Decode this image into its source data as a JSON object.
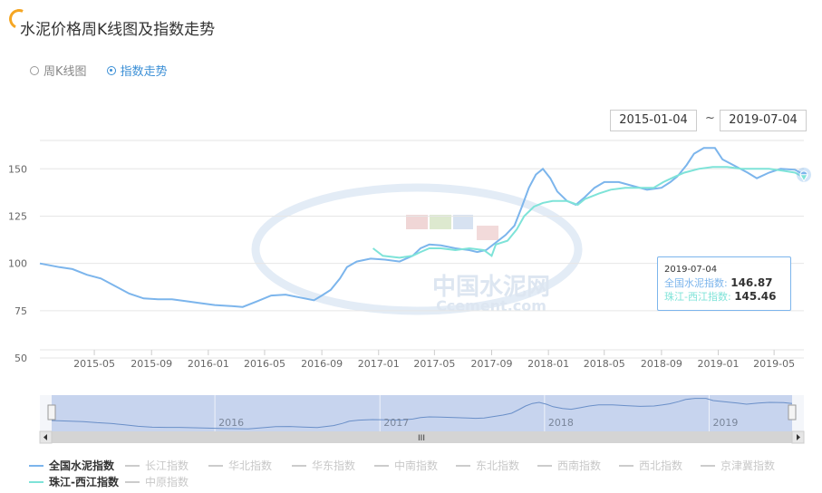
{
  "page": {
    "title": "水泥价格周K线图及指数走势"
  },
  "view_options": [
    {
      "label": "周K线图",
      "selected": false
    },
    {
      "label": "指数走势",
      "selected": true
    }
  ],
  "date_range": {
    "start": "2015-01-04",
    "separator": "~",
    "end": "2019-07-04"
  },
  "watermark": {
    "cn": "中国水泥网",
    "en": "Ccement.com"
  },
  "tooltip": {
    "date": "2019-07-04",
    "rows": [
      {
        "label": "全国水泥指数:",
        "value": "146.87",
        "color": "#7cb5ec"
      },
      {
        "label": "珠江-西江指数:",
        "value": "145.46",
        "color": "#7ee3d8"
      }
    ]
  },
  "navigator": {
    "labels": [
      "2016",
      "2017",
      "2018",
      "2019"
    ],
    "scroll_grip": "III"
  },
  "legend": [
    {
      "label": "全国水泥指数",
      "active": true,
      "color": "#7cb5ec"
    },
    {
      "label": "长江指数",
      "active": false,
      "color": "#cccccc"
    },
    {
      "label": "华北指数",
      "active": false,
      "color": "#cccccc"
    },
    {
      "label": "华东指数",
      "active": false,
      "color": "#cccccc"
    },
    {
      "label": "中南指数",
      "active": false,
      "color": "#cccccc"
    },
    {
      "label": "东北指数",
      "active": false,
      "color": "#cccccc"
    },
    {
      "label": "西南指数",
      "active": false,
      "color": "#cccccc"
    },
    {
      "label": "西北指数",
      "active": false,
      "color": "#cccccc"
    },
    {
      "label": "京津冀指数",
      "active": false,
      "color": "#cccccc"
    },
    {
      "label": "珠江-西江指数",
      "active": true,
      "color": "#7ee3d8"
    },
    {
      "label": "中原指数",
      "active": false,
      "color": "#cccccc"
    }
  ],
  "chart_data": {
    "type": "line",
    "title": "",
    "xlabel": "",
    "ylabel": "",
    "ylim": [
      50,
      165
    ],
    "yticks": [
      50,
      75,
      100,
      125,
      150
    ],
    "xlim": [
      "2015-01-04",
      "2019-07-04"
    ],
    "xticks": [
      "2015-05",
      "2015-09",
      "2016-01",
      "2016-05",
      "2016-09",
      "2017-01",
      "2017-05",
      "2017-09",
      "2018-01",
      "2018-05",
      "2018-09",
      "2019-01",
      "2019-05"
    ],
    "grid": true,
    "series": [
      {
        "name": "全国水泥指数",
        "color": "#7cb5ec",
        "points": [
          [
            "2015-01-04",
            100
          ],
          [
            "2015-02-15",
            98
          ],
          [
            "2015-03-15",
            97
          ],
          [
            "2015-04-15",
            94
          ],
          [
            "2015-05-15",
            92
          ],
          [
            "2015-06-15",
            88
          ],
          [
            "2015-07-15",
            84
          ],
          [
            "2015-08-15",
            81.5
          ],
          [
            "2015-09-15",
            81
          ],
          [
            "2015-10-15",
            81
          ],
          [
            "2015-11-15",
            80
          ],
          [
            "2015-12-15",
            79
          ],
          [
            "2016-01-15",
            78
          ],
          [
            "2016-02-15",
            77.5
          ],
          [
            "2016-03-15",
            77
          ],
          [
            "2016-04-15",
            80
          ],
          [
            "2016-05-15",
            83
          ],
          [
            "2016-06-15",
            83.5
          ],
          [
            "2016-07-15",
            82
          ],
          [
            "2016-08-15",
            80.5
          ],
          [
            "2016-09-01",
            83
          ],
          [
            "2016-09-20",
            86
          ],
          [
            "2016-10-10",
            92
          ],
          [
            "2016-10-25",
            98
          ],
          [
            "2016-11-15",
            101
          ],
          [
            "2016-12-15",
            102.5
          ],
          [
            "2017-01-15",
            102
          ],
          [
            "2017-02-15",
            101
          ],
          [
            "2017-03-15",
            104
          ],
          [
            "2017-04-01",
            108
          ],
          [
            "2017-04-20",
            110
          ],
          [
            "2017-05-15",
            109.5
          ],
          [
            "2017-06-15",
            108
          ],
          [
            "2017-07-15",
            107
          ],
          [
            "2017-08-01",
            106
          ],
          [
            "2017-08-20",
            107
          ],
          [
            "2017-09-10",
            111
          ],
          [
            "2017-10-01",
            115
          ],
          [
            "2017-10-20",
            120
          ],
          [
            "2017-11-05",
            130
          ],
          [
            "2017-11-20",
            140
          ],
          [
            "2017-12-05",
            147
          ],
          [
            "2017-12-20",
            150
          ],
          [
            "2018-01-05",
            145
          ],
          [
            "2018-01-20",
            138
          ],
          [
            "2018-02-10",
            133
          ],
          [
            "2018-03-01",
            131
          ],
          [
            "2018-03-20",
            135
          ],
          [
            "2018-04-10",
            140
          ],
          [
            "2018-05-01",
            143
          ],
          [
            "2018-06-01",
            143
          ],
          [
            "2018-07-01",
            141
          ],
          [
            "2018-08-01",
            139
          ],
          [
            "2018-09-01",
            140
          ],
          [
            "2018-09-20",
            143
          ],
          [
            "2018-10-05",
            146
          ],
          [
            "2018-10-25",
            152
          ],
          [
            "2018-11-10",
            158
          ],
          [
            "2018-12-01",
            161
          ],
          [
            "2018-12-25",
            161
          ],
          [
            "2019-01-10",
            155
          ],
          [
            "2019-02-10",
            151
          ],
          [
            "2019-03-05",
            148
          ],
          [
            "2019-03-25",
            145
          ],
          [
            "2019-04-20",
            148
          ],
          [
            "2019-05-15",
            150
          ],
          [
            "2019-06-15",
            149.5
          ],
          [
            "2019-07-04",
            146.87
          ]
        ]
      },
      {
        "name": "珠江-西江指数",
        "color": "#7ee3d8",
        "points": [
          [
            "2016-12-20",
            108
          ],
          [
            "2017-01-10",
            104
          ],
          [
            "2017-02-15",
            103
          ],
          [
            "2017-03-15",
            104
          ],
          [
            "2017-04-01",
            106
          ],
          [
            "2017-04-20",
            108
          ],
          [
            "2017-05-15",
            108
          ],
          [
            "2017-06-15",
            107
          ],
          [
            "2017-07-15",
            108
          ],
          [
            "2017-08-15",
            107
          ],
          [
            "2017-09-01",
            104
          ],
          [
            "2017-09-10",
            110
          ],
          [
            "2017-10-05",
            112
          ],
          [
            "2017-10-25",
            118
          ],
          [
            "2017-11-10",
            125
          ],
          [
            "2017-12-01",
            130
          ],
          [
            "2017-12-20",
            132
          ],
          [
            "2018-01-10",
            133
          ],
          [
            "2018-02-10",
            133
          ],
          [
            "2018-03-05",
            131
          ],
          [
            "2018-03-20",
            134
          ],
          [
            "2018-04-20",
            137
          ],
          [
            "2018-05-15",
            139
          ],
          [
            "2018-06-15",
            140
          ],
          [
            "2018-07-15",
            140
          ],
          [
            "2018-08-15",
            140
          ],
          [
            "2018-09-05",
            143
          ],
          [
            "2018-10-01",
            146
          ],
          [
            "2018-10-20",
            148
          ],
          [
            "2018-11-20",
            150
          ],
          [
            "2018-12-20",
            151
          ],
          [
            "2019-01-20",
            151
          ],
          [
            "2019-02-20",
            150
          ],
          [
            "2019-03-20",
            150
          ],
          [
            "2019-04-20",
            150
          ],
          [
            "2019-05-20",
            149
          ],
          [
            "2019-06-15",
            148
          ],
          [
            "2019-07-04",
            145.46
          ]
        ]
      }
    ]
  }
}
